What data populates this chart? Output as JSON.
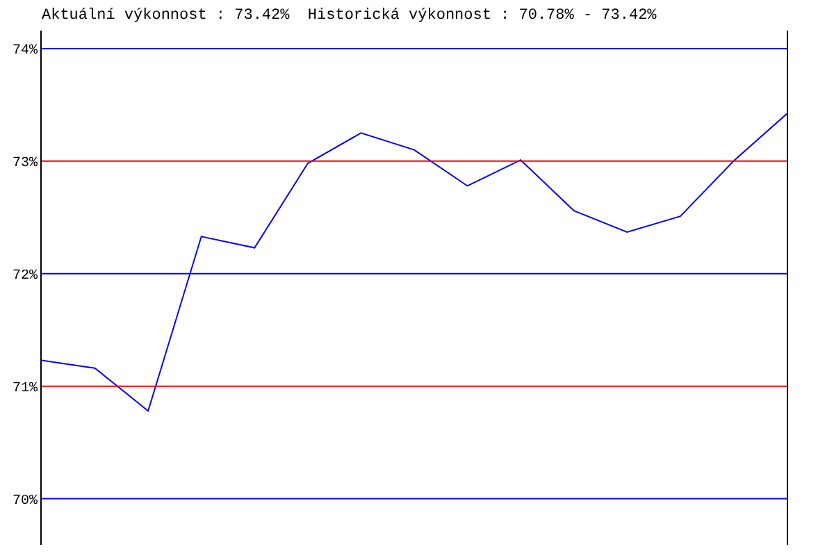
{
  "chart_data": {
    "type": "line",
    "title": "Aktuální výkonnost : 73.42%  Historická výkonnost : 70.78% - 73.42%",
    "categories": [
      null,
      null,
      null,
      null,
      null,
      null,
      null,
      null,
      null,
      null,
      null,
      null,
      null,
      null,
      null
    ],
    "series": [
      {
        "color": "#0000ff",
        "values": [
          71.23,
          71.16,
          70.78,
          72.33,
          72.23,
          72.98,
          73.25,
          73.1,
          72.78,
          73.01,
          72.56,
          72.37,
          72.51,
          73.0,
          73.42
        ]
      }
    ],
    "ylim": [
      69.59,
      74.16
    ],
    "yticks": [
      {
        "value": 70,
        "label": "70%"
      },
      {
        "value": 71,
        "label": "71%"
      },
      {
        "value": 72,
        "label": "72%"
      },
      {
        "value": 73,
        "label": "73%"
      },
      {
        "value": 74,
        "label": "74%"
      }
    ],
    "ref_lines": [
      {
        "axis": "y",
        "value": 70,
        "color": "#0000ff"
      },
      {
        "axis": "y",
        "value": 71,
        "color": "#ff0000"
      },
      {
        "axis": "y",
        "value": 72,
        "color": "#0000ff"
      },
      {
        "axis": "y",
        "value": 73,
        "color": "#ff0000"
      },
      {
        "axis": "y",
        "value": 74,
        "color": "#0000ff"
      }
    ],
    "marker": "none",
    "line_style": "solid"
  }
}
